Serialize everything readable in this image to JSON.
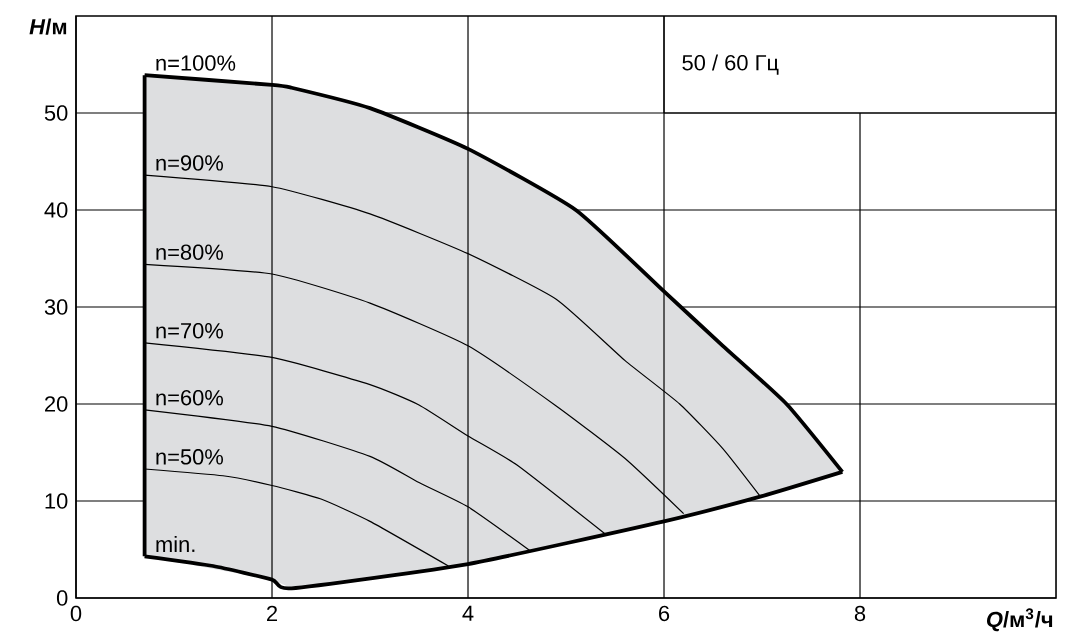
{
  "chart_data": {
    "type": "line",
    "title": "50 / 60 Гц",
    "xlabel": "*Q*/м$^{3}$/ч",
    "ylabel": "*H*/м",
    "xlim": [
      0,
      10
    ],
    "ylim": [
      0,
      60
    ],
    "xticks": [
      0,
      2,
      4,
      6,
      8
    ],
    "yticks": [
      0,
      10,
      20,
      30,
      40,
      50
    ],
    "grid": true,
    "series": [
      {
        "name": "n=100%",
        "color": "#000000",
        "x": [
          0.7,
          2,
          2.2,
          3,
          4,
          5.1,
          6,
          6.6,
          7.25,
          7.82
        ],
        "values": [
          53.9,
          52.9,
          52.6,
          50.5,
          46.3,
          40,
          31.6,
          26,
          20,
          13
        ],
        "lower": [
          4.3,
          1.9,
          1.0,
          2.1,
          3.5,
          5.9,
          7.9,
          9.5,
          11.2,
          13
        ],
        "upper": [
          53.9,
          52.9,
          52.6,
          50.5,
          46.3,
          40,
          31.6,
          26,
          20,
          13
        ]
      },
      {
        "name": "n=90%",
        "color": "#000000",
        "x": [
          0.7,
          2,
          3,
          4,
          4.9,
          5.6,
          6.16,
          6.6,
          6.98
        ],
        "values": [
          43.6,
          42.4,
          39.6,
          35.5,
          30.8,
          24.5,
          20,
          15.4,
          10.5
        ]
      },
      {
        "name": "n=80%",
        "color": "#000000",
        "x": [
          0.7,
          2,
          3,
          4,
          4.9,
          5.6,
          6.2
        ],
        "values": [
          34.4,
          33.4,
          30.4,
          26,
          19.8,
          14.4,
          8.7
        ]
      },
      {
        "name": "n=70%",
        "color": "#000000",
        "x": [
          0.7,
          2,
          3,
          3.5,
          4,
          4.5,
          5.4
        ],
        "values": [
          26.3,
          24.8,
          22,
          19.9,
          16.7,
          13.7,
          6.6
        ]
      },
      {
        "name": "n=60%",
        "color": "#000000",
        "x": [
          0.7,
          2,
          3,
          3.5,
          4,
          4.63
        ],
        "values": [
          19.4,
          17.7,
          14.6,
          11.9,
          9.4,
          4.9
        ]
      },
      {
        "name": "n=50%",
        "color": "#000000",
        "x": [
          0.7,
          1.5,
          2,
          2.5,
          3,
          3.8
        ],
        "values": [
          13.3,
          12.6,
          11.6,
          10.2,
          7.9,
          3.3
        ]
      },
      {
        "name": "min.",
        "color": "#000000",
        "x": [
          0.7,
          1.4,
          2,
          2.2,
          4,
          6,
          7,
          7.82
        ],
        "values": [
          4.3,
          3.3,
          1.9,
          1.0,
          3.5,
          7.9,
          10.5,
          13
        ]
      },
      {
        "color": "#000000",
        "x": [
          0.7,
          0.7
        ],
        "values": [
          4.3,
          53.9
        ]
      }
    ]
  }
}
